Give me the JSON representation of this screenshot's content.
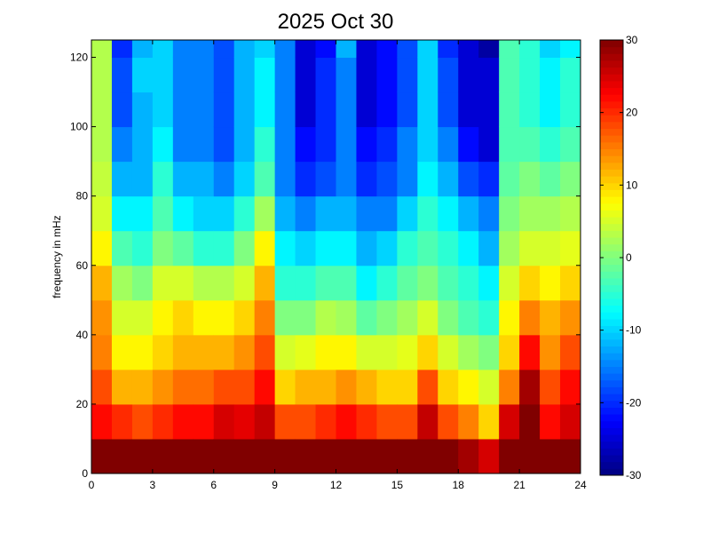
{
  "chart_data": {
    "type": "heatmap",
    "title": "2025 Oct 30",
    "xlabel": "",
    "ylabel": "frequency in mHz",
    "xlim": [
      0,
      24
    ],
    "ylim": [
      0,
      125
    ],
    "xticks": [
      0,
      3,
      6,
      9,
      12,
      15,
      18,
      21,
      24
    ],
    "yticks": [
      0,
      20,
      40,
      60,
      80,
      100,
      120
    ],
    "colorbar": {
      "range": [
        -30,
        30
      ],
      "ticks": [
        -30,
        -20,
        -10,
        0,
        10,
        20,
        30
      ],
      "colormap": "jet"
    },
    "x_bins": [
      0,
      1,
      2,
      3,
      4,
      5,
      6,
      7,
      8,
      9,
      10,
      11,
      12,
      13,
      14,
      15,
      16,
      17,
      18,
      19,
      20,
      21,
      22,
      23
    ],
    "y_bins": [
      0,
      10,
      20,
      30,
      40,
      50,
      60,
      70,
      80,
      90,
      100,
      110,
      120
    ],
    "values": [
      [
        30,
        22,
        18,
        15,
        14,
        12,
        8,
        5,
        4,
        3,
        3,
        3,
        3
      ],
      [
        30,
        20,
        12,
        8,
        5,
        2,
        -3,
        -8,
        -12,
        -15,
        -18,
        -18,
        -20
      ],
      [
        30,
        18,
        12,
        8,
        5,
        0,
        -5,
        -8,
        -12,
        -12,
        -12,
        -10,
        -12
      ],
      [
        30,
        20,
        14,
        10,
        8,
        5,
        0,
        -3,
        -5,
        -8,
        -10,
        -10,
        -10
      ],
      [
        30,
        22,
        16,
        12,
        10,
        5,
        -2,
        -8,
        -12,
        -15,
        -15,
        -15,
        -15
      ],
      [
        30,
        22,
        16,
        12,
        8,
        3,
        -5,
        -10,
        -12,
        -15,
        -15,
        -15,
        -15
      ],
      [
        30,
        25,
        18,
        12,
        8,
        3,
        -5,
        -10,
        -15,
        -18,
        -18,
        -18,
        -18
      ],
      [
        30,
        24,
        18,
        14,
        10,
        5,
        0,
        -5,
        -10,
        -12,
        -12,
        -12,
        -12
      ],
      [
        30,
        26,
        22,
        18,
        15,
        12,
        8,
        2,
        -3,
        -5,
        -8,
        -8,
        -10
      ],
      [
        30,
        18,
        10,
        5,
        0,
        -5,
        -8,
        -12,
        -15,
        -15,
        -15,
        -15,
        -15
      ],
      [
        30,
        18,
        12,
        6,
        0,
        -5,
        -10,
        -15,
        -20,
        -22,
        -25,
        -25,
        -25
      ],
      [
        30,
        20,
        12,
        8,
        3,
        -3,
        -8,
        -12,
        -18,
        -20,
        -20,
        -20,
        -22
      ],
      [
        30,
        22,
        14,
        8,
        2,
        -3,
        -8,
        -12,
        -15,
        -15,
        -15,
        -15,
        -12
      ],
      [
        30,
        20,
        12,
        5,
        -2,
        -8,
        -12,
        -15,
        -20,
        -22,
        -25,
        -25,
        -25
      ],
      [
        30,
        18,
        10,
        5,
        0,
        -5,
        -10,
        -15,
        -18,
        -20,
        -22,
        -22,
        -22
      ],
      [
        30,
        18,
        10,
        6,
        2,
        -2,
        -5,
        -10,
        -15,
        -15,
        -18,
        -18,
        -18
      ],
      [
        30,
        26,
        18,
        10,
        5,
        0,
        -3,
        -5,
        -8,
        -10,
        -10,
        -10,
        -10
      ],
      [
        30,
        18,
        10,
        5,
        0,
        -3,
        -5,
        -8,
        -12,
        -15,
        -18,
        -18,
        -20
      ],
      [
        28,
        15,
        8,
        2,
        -3,
        -5,
        -8,
        -12,
        -18,
        -22,
        -25,
        -25,
        -25
      ],
      [
        25,
        10,
        5,
        0,
        -5,
        -8,
        -12,
        -15,
        -20,
        -25,
        -25,
        -25,
        -28
      ],
      [
        30,
        25,
        15,
        10,
        8,
        5,
        2,
        0,
        -2,
        -3,
        -3,
        -3,
        -3
      ],
      [
        30,
        30,
        28,
        22,
        15,
        10,
        5,
        2,
        0,
        -3,
        -5,
        -5,
        -5
      ],
      [
        30,
        22,
        18,
        14,
        12,
        8,
        5,
        2,
        -2,
        -5,
        -8,
        -8,
        -10
      ],
      [
        30,
        25,
        22,
        18,
        14,
        10,
        6,
        3,
        0,
        -3,
        -5,
        -5,
        -8
      ]
    ]
  }
}
